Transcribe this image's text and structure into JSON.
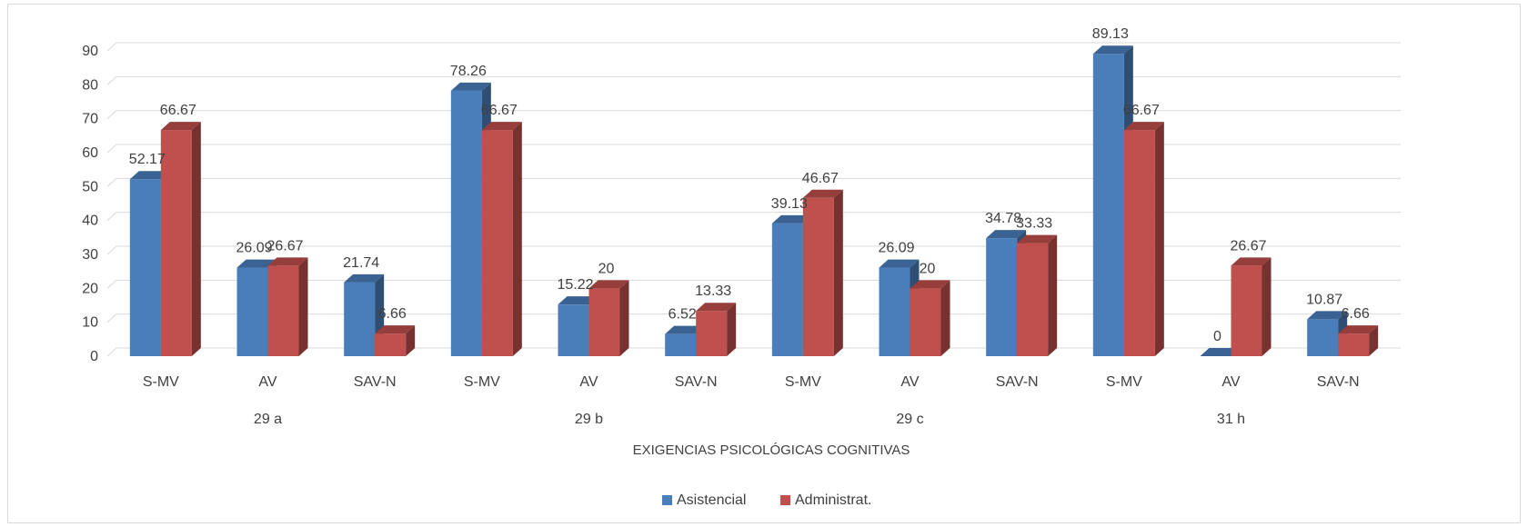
{
  "chart_data": {
    "type": "bar",
    "style": "3d-clustered-column",
    "title": "",
    "xlabel": "EXIGENCIAS PSICOLÓGICAS COGNITIVAS",
    "ylabel": "",
    "ylim": [
      0,
      90
    ],
    "yticks": [
      "0",
      "10",
      "20",
      "30",
      "40",
      "50",
      "60",
      "70",
      "80",
      "90"
    ],
    "grid": true,
    "legend_position": "bottom",
    "groups": [
      {
        "label": "29 a",
        "categories": [
          "S-MV",
          "AV",
          "SAV-N"
        ]
      },
      {
        "label": "29 b",
        "categories": [
          "S-MV",
          "AV",
          "SAV-N"
        ]
      },
      {
        "label": "29 c",
        "categories": [
          "S-MV",
          "AV",
          "SAV-N"
        ]
      },
      {
        "label": "31 h",
        "categories": [
          "S-MV",
          "AV",
          "SAV-N"
        ]
      }
    ],
    "categories": [
      "S-MV",
      "AV",
      "SAV-N",
      "S-MV",
      "AV",
      "SAV-N",
      "S-MV",
      "AV",
      "SAV-N",
      "S-MV",
      "AV",
      "SAV-N"
    ],
    "series": [
      {
        "name": "Asistencial",
        "color": "#4a7ebb",
        "values": [
          52.17,
          26.09,
          21.74,
          78.26,
          15.22,
          6.52,
          39.13,
          26.09,
          34.78,
          89.13,
          0,
          10.87
        ],
        "labels": [
          "52.17",
          "26.09",
          "21.74",
          "78.26",
          "15.22",
          "6.52",
          "39.13",
          "26.09",
          "34.78",
          "89.13",
          "0",
          "10.87"
        ]
      },
      {
        "name": "Administrat.",
        "color": "#c0504d",
        "values": [
          66.67,
          26.67,
          6.66,
          66.67,
          20,
          13.33,
          46.67,
          20,
          33.33,
          66.67,
          26.67,
          6.66
        ],
        "labels": [
          "66.67",
          "26.67",
          "6.66",
          "66.67",
          "20",
          "13.33",
          "46.67",
          "20",
          "33.33",
          "66.67",
          "26.67",
          "6.66"
        ]
      }
    ]
  }
}
